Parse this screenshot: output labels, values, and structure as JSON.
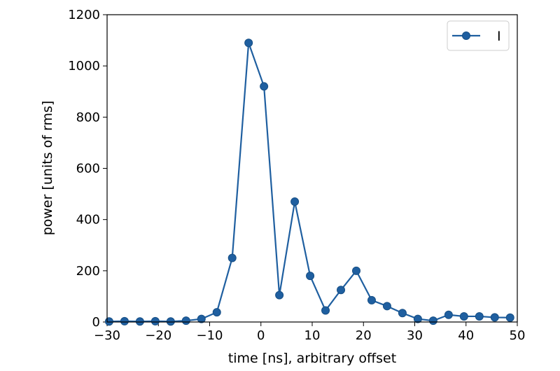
{
  "chart_data": {
    "type": "line",
    "title": "",
    "xlabel": "time [ns], arbitrary offset",
    "ylabel": "power [units of rms]",
    "xlim": [
      -30,
      50
    ],
    "ylim": [
      0,
      1200
    ],
    "xticks": [
      -30,
      -20,
      -10,
      0,
      10,
      20,
      30,
      40,
      50
    ],
    "yticks": [
      0,
      200,
      400,
      600,
      800,
      1000,
      1200
    ],
    "xtick_labels": [
      "−30",
      "−20",
      "−10",
      "0",
      "10",
      "20",
      "30",
      "40",
      "50"
    ],
    "ytick_labels": [
      "0",
      "200",
      "400",
      "600",
      "800",
      "1000",
      "1200"
    ],
    "grid": false,
    "legend": "top-right",
    "series": [
      {
        "name": "I",
        "color": "#1f5fa0",
        "marker": "circle",
        "x": [
          -29.6,
          -26.6,
          -23.6,
          -20.6,
          -17.6,
          -14.6,
          -11.6,
          -8.6,
          -5.6,
          -2.4,
          0.6,
          3.6,
          6.6,
          9.6,
          12.6,
          15.6,
          18.6,
          21.6,
          24.6,
          27.6,
          30.6,
          33.6,
          36.6,
          39.6,
          42.6,
          45.6,
          48.6
        ],
        "y": [
          2,
          3,
          2,
          3,
          2,
          5,
          12,
          38,
          250,
          1090,
          920,
          105,
          470,
          180,
          45,
          125,
          200,
          85,
          62,
          35,
          12,
          5,
          28,
          22,
          22,
          18,
          17
        ]
      }
    ]
  }
}
